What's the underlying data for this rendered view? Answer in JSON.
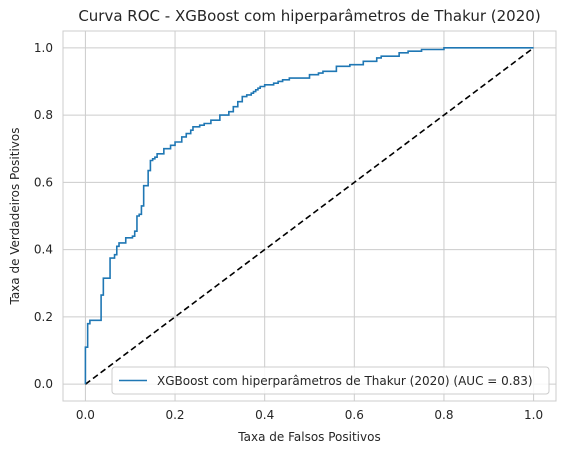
{
  "chart_data": {
    "type": "line",
    "title": "Curva ROC - XGBoost com hiperparâmetros de Thakur (2020)",
    "xlabel": "Taxa de Falsos Positivos",
    "ylabel": "Taxa de Verdadeiros Positivos",
    "xlim": [
      -0.05,
      1.05
    ],
    "ylim": [
      -0.05,
      1.05
    ],
    "xticks": [
      0.0,
      0.2,
      0.4,
      0.6,
      0.8,
      1.0
    ],
    "xtick_labels": [
      "0.0",
      "0.2",
      "0.4",
      "0.6",
      "0.8",
      "1.0"
    ],
    "yticks": [
      0.0,
      0.2,
      0.4,
      0.6,
      0.8,
      1.0
    ],
    "ytick_labels": [
      "0.0",
      "0.2",
      "0.4",
      "0.6",
      "0.8",
      "1.0"
    ],
    "grid": true,
    "legend_position": "bottom-right",
    "series": [
      {
        "name": "XGBoost com hiperparâmetros de Thakur (2020) (AUC = 0.83)",
        "color": "#1f77b4",
        "style": "solid",
        "x": [
          0.0,
          0.0,
          0.005,
          0.005,
          0.01,
          0.01,
          0.035,
          0.035,
          0.04,
          0.04,
          0.055,
          0.055,
          0.065,
          0.065,
          0.07,
          0.07,
          0.075,
          0.075,
          0.09,
          0.09,
          0.105,
          0.105,
          0.11,
          0.11,
          0.115,
          0.115,
          0.12,
          0.12,
          0.125,
          0.125,
          0.13,
          0.13,
          0.14,
          0.14,
          0.145,
          0.145,
          0.15,
          0.15,
          0.155,
          0.155,
          0.16,
          0.16,
          0.175,
          0.175,
          0.19,
          0.19,
          0.2,
          0.2,
          0.215,
          0.215,
          0.225,
          0.225,
          0.235,
          0.235,
          0.24,
          0.24,
          0.255,
          0.255,
          0.265,
          0.265,
          0.28,
          0.28,
          0.3,
          0.3,
          0.32,
          0.32,
          0.33,
          0.33,
          0.34,
          0.34,
          0.35,
          0.35,
          0.36,
          0.36,
          0.37,
          0.37,
          0.375,
          0.375,
          0.38,
          0.38,
          0.385,
          0.385,
          0.39,
          0.39,
          0.4,
          0.4,
          0.42,
          0.42,
          0.43,
          0.43,
          0.44,
          0.44,
          0.455,
          0.455,
          0.5,
          0.5,
          0.52,
          0.52,
          0.53,
          0.53,
          0.56,
          0.56,
          0.59,
          0.59,
          0.62,
          0.62,
          0.65,
          0.65,
          0.66,
          0.66,
          0.7,
          0.7,
          0.72,
          0.72,
          0.75,
          0.75,
          0.8,
          0.8,
          1.0
        ],
        "y": [
          0.0,
          0.11,
          0.11,
          0.18,
          0.18,
          0.19,
          0.19,
          0.265,
          0.265,
          0.315,
          0.315,
          0.375,
          0.375,
          0.385,
          0.385,
          0.41,
          0.41,
          0.42,
          0.42,
          0.435,
          0.435,
          0.44,
          0.44,
          0.455,
          0.455,
          0.5,
          0.5,
          0.505,
          0.505,
          0.53,
          0.53,
          0.59,
          0.59,
          0.635,
          0.635,
          0.665,
          0.665,
          0.67,
          0.67,
          0.675,
          0.675,
          0.685,
          0.685,
          0.7,
          0.7,
          0.71,
          0.71,
          0.72,
          0.72,
          0.735,
          0.735,
          0.745,
          0.745,
          0.755,
          0.755,
          0.765,
          0.765,
          0.77,
          0.77,
          0.775,
          0.775,
          0.785,
          0.785,
          0.8,
          0.8,
          0.81,
          0.81,
          0.825,
          0.825,
          0.84,
          0.84,
          0.855,
          0.855,
          0.86,
          0.86,
          0.865,
          0.865,
          0.87,
          0.87,
          0.875,
          0.875,
          0.88,
          0.88,
          0.885,
          0.885,
          0.89,
          0.89,
          0.895,
          0.895,
          0.9,
          0.9,
          0.905,
          0.905,
          0.91,
          0.91,
          0.92,
          0.92,
          0.925,
          0.925,
          0.93,
          0.93,
          0.945,
          0.945,
          0.95,
          0.95,
          0.96,
          0.96,
          0.97,
          0.97,
          0.975,
          0.975,
          0.985,
          0.985,
          0.99,
          0.99,
          0.995,
          0.995,
          1.0,
          1.0
        ]
      },
      {
        "color": "#000000",
        "style": "dashed",
        "x": [
          0.0,
          1.0
        ],
        "y": [
          0.0,
          1.0
        ]
      }
    ]
  }
}
